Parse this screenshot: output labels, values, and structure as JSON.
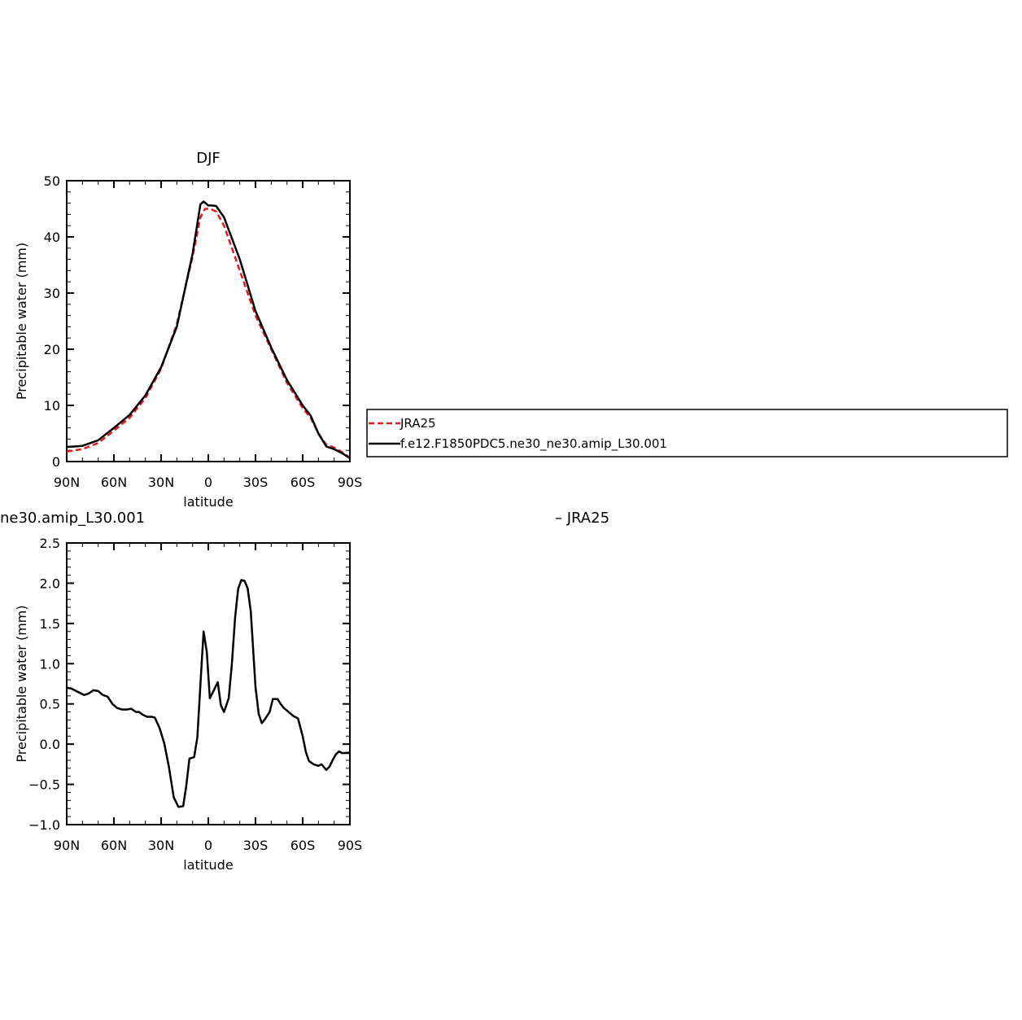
{
  "chart_data": [
    {
      "type": "line",
      "title": "DJF",
      "xlabel": "latitude",
      "ylabel": "Precipitable water (mm)",
      "xlim": [
        90,
        -90
      ],
      "ylim": [
        0,
        50
      ],
      "xticks": [
        90,
        60,
        30,
        0,
        -30,
        -60,
        -90
      ],
      "xtick_labels": [
        "90N",
        "60N",
        "30N",
        "0",
        "30S",
        "60S",
        "90S"
      ],
      "yticks": [
        0,
        10,
        20,
        30,
        40,
        50
      ],
      "ytick_labels": [
        "0",
        "10",
        "20",
        "30",
        "40",
        "50"
      ],
      "grid": false,
      "legend": "right",
      "series": [
        {
          "name": "JRA25",
          "color": "#e41a1c",
          "dash": "dashed",
          "x": [
            90,
            80,
            70,
            60,
            50,
            40,
            30,
            20,
            10,
            5,
            2,
            0,
            -2,
            -5,
            -10,
            -20,
            -30,
            -40,
            -50,
            -60,
            -65,
            -70,
            -75,
            -80,
            -85,
            -90
          ],
          "y": [
            1.8,
            2.2,
            3.3,
            5.5,
            7.8,
            11.3,
            16.5,
            24.5,
            36.5,
            43.5,
            45.0,
            45.0,
            44.9,
            44.5,
            42.0,
            34.0,
            26.0,
            20.0,
            14.0,
            9.5,
            7.8,
            5.0,
            3.0,
            2.5,
            1.7,
            0.7
          ]
        },
        {
          "name": "f.e12.F1850PDC5.ne30_ne30.amip_L30.001",
          "color": "#000000",
          "dash": "solid",
          "x": [
            90,
            80,
            70,
            60,
            50,
            40,
            30,
            20,
            10,
            5,
            3,
            0,
            -2,
            -5,
            -10,
            -20,
            -30,
            -40,
            -50,
            -60,
            -65,
            -70,
            -75,
            -80,
            -85,
            -90
          ],
          "y": [
            2.6,
            2.8,
            3.8,
            6.0,
            8.3,
            11.8,
            16.8,
            24.0,
            37.0,
            45.8,
            46.3,
            45.6,
            45.6,
            45.5,
            43.5,
            36.0,
            26.8,
            20.3,
            14.5,
            10.0,
            8.2,
            5.0,
            2.7,
            2.2,
            1.5,
            0.6
          ]
        }
      ]
    },
    {
      "type": "line",
      "title_left": "ne30.amip_L30.001",
      "title_right": "– JRA25",
      "xlabel": "latitude",
      "ylabel": "Precipitable water (mm)",
      "xlim": [
        90,
        -90
      ],
      "ylim": [
        -1.0,
        2.5
      ],
      "xticks": [
        90,
        60,
        30,
        0,
        -30,
        -60,
        -90
      ],
      "xtick_labels": [
        "90N",
        "60N",
        "30N",
        "0",
        "30S",
        "60S",
        "90S"
      ],
      "yticks": [
        -1.0,
        -0.5,
        0.0,
        0.5,
        1.0,
        1.5,
        2.0,
        2.5
      ],
      "ytick_labels": [
        "−1.0",
        "−0.5",
        "0.0",
        "0.5",
        "1.0",
        "1.5",
        "2.0",
        "2.5"
      ],
      "grid": false,
      "series": [
        {
          "color": "#000000",
          "x": [
            90,
            87,
            84,
            82,
            79,
            76,
            73,
            70,
            67,
            64,
            61,
            58,
            55,
            52,
            49,
            46,
            44,
            42,
            39,
            36,
            34,
            31,
            28,
            25,
            22,
            19,
            16,
            14,
            12,
            9,
            7,
            5,
            3,
            1,
            -1,
            -3,
            -6,
            -8,
            -10,
            -13,
            -15,
            -17,
            -19,
            -21,
            -23,
            -25,
            -27,
            -30,
            -32,
            -34,
            -36,
            -39,
            -41,
            -44,
            -46,
            -48,
            -51,
            -54,
            -57,
            -60,
            -62,
            -64,
            -67,
            -70,
            -72,
            -75,
            -77,
            -79,
            -81,
            -83,
            -85,
            -87,
            -90
          ],
          "y": [
            0.7,
            0.69,
            0.66,
            0.64,
            0.61,
            0.63,
            0.67,
            0.66,
            0.61,
            0.59,
            0.5,
            0.45,
            0.43,
            0.43,
            0.44,
            0.4,
            0.4,
            0.37,
            0.34,
            0.34,
            0.33,
            0.2,
            0.01,
            -0.29,
            -0.66,
            -0.78,
            -0.77,
            -0.52,
            -0.18,
            -0.16,
            0.08,
            0.74,
            1.4,
            1.15,
            0.57,
            0.65,
            0.77,
            0.48,
            0.4,
            0.57,
            1.0,
            1.57,
            1.93,
            2.04,
            2.03,
            1.94,
            1.65,
            0.71,
            0.38,
            0.26,
            0.31,
            0.4,
            0.56,
            0.56,
            0.5,
            0.45,
            0.4,
            0.35,
            0.32,
            0.1,
            -0.1,
            -0.21,
            -0.25,
            -0.27,
            -0.25,
            -0.32,
            -0.28,
            -0.2,
            -0.13,
            -0.09,
            -0.11,
            -0.11,
            -0.11
          ]
        }
      ]
    }
  ]
}
